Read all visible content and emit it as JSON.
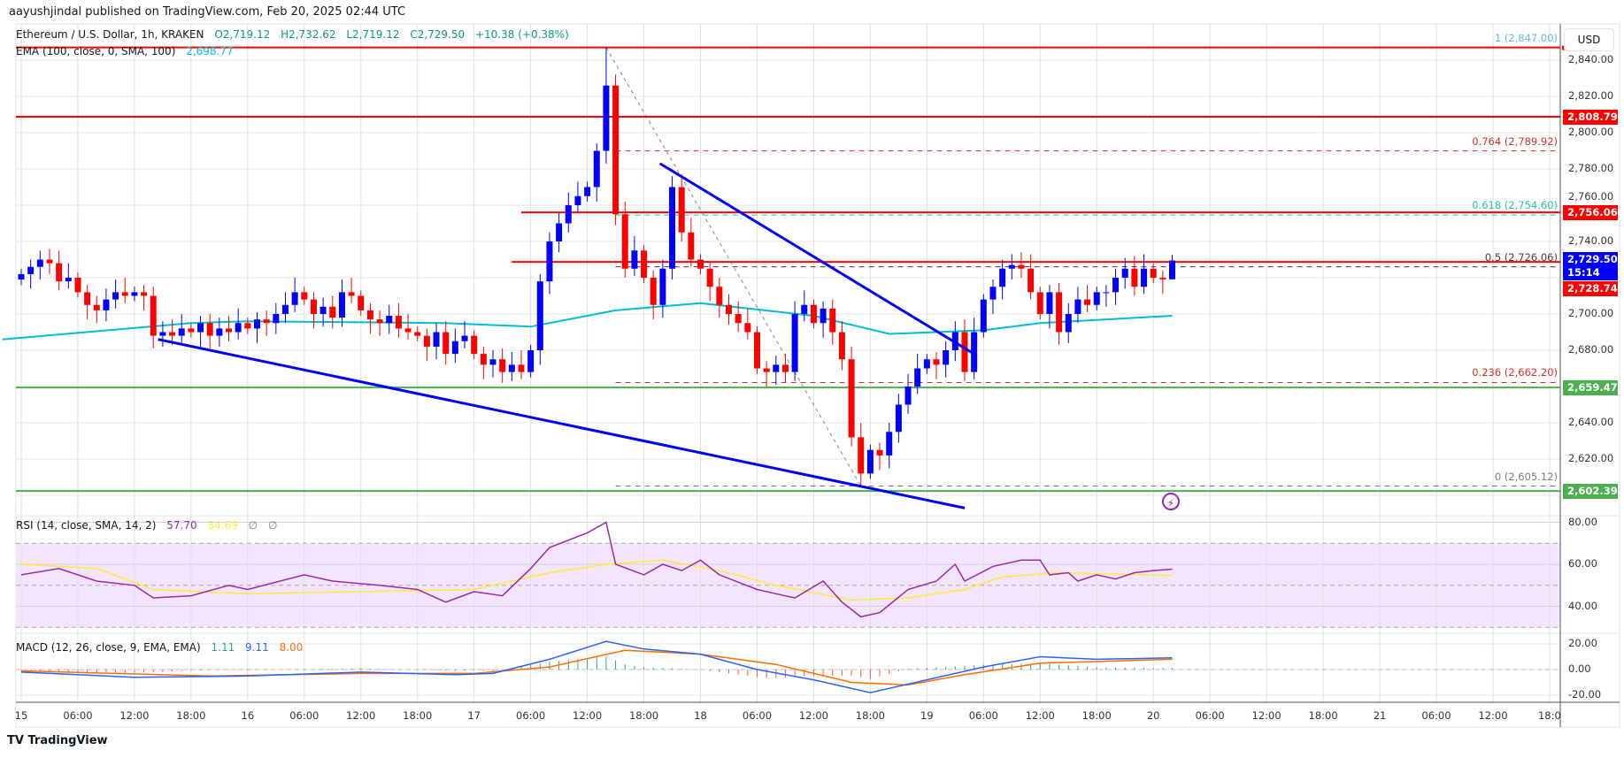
{
  "publisher": "aayushjindal published on TradingView.com, Feb 20, 2025 02:44 UTC",
  "symbol": {
    "title": "Ethereum / U.S. Dollar, 1h, KRAKEN",
    "open": "O2,719.12",
    "high": "H2,732.62",
    "low": "L2,719.12",
    "close": "C2,729.50",
    "change": "+10.38 (+0.38%)"
  },
  "ema": {
    "label": "EMA (100, close, 0, SMA, 100)",
    "value": "2,698.77",
    "color": "#00bcd4"
  },
  "rsi": {
    "label": "RSI (14, close, SMA, 14, 2)",
    "value": "57.70",
    "sma_value": "54.69",
    "extra1": "∅",
    "extra2": "∅",
    "color": "#9c27b0",
    "sma_color": "#ffeb3b"
  },
  "macd": {
    "label": "MACD (12, 26, close, 9, EMA, EMA)",
    "hist_value": "1.11",
    "macd_value": "9.11",
    "signal_value": "8.00",
    "macd_color": "#2962ff",
    "signal_color": "#ff6d00"
  },
  "currency_button": "USD",
  "countdown": "15:14",
  "branding": "TradingView",
  "colors": {
    "up": "#0000ff",
    "down": "#ff0000",
    "resistance": "#ff0000",
    "support": "#4caf50",
    "trendline": "#0000ff"
  },
  "price_axis_ticks": [
    "2,840.00",
    "2,820.00",
    "2,800.00",
    "2,780.00",
    "2,760.00",
    "2,740.00",
    "2,700.00",
    "2,680.00",
    "2,640.00",
    "2,620.00"
  ],
  "rsi_axis_ticks": [
    "80.00",
    "60.00",
    "40.00"
  ],
  "macd_axis_ticks": [
    "20.00",
    "0.00",
    "-20.00"
  ],
  "time_axis_ticks": [
    "15",
    "06:00",
    "12:00",
    "18:00",
    "16",
    "06:00",
    "12:00",
    "18:00",
    "17",
    "06:00",
    "12:00",
    "18:00",
    "18",
    "06:00",
    "12:00",
    "18:00",
    "19",
    "06:00",
    "12:00",
    "18:00",
    "20",
    "06:00",
    "12:00",
    "18:00",
    "21",
    "06:00",
    "12:00",
    "18:0"
  ],
  "price_tags": [
    {
      "value": 2808.79,
      "label": "2,808.79",
      "color": "#ff0000"
    },
    {
      "value": 2756.06,
      "label": "2,756.06",
      "color": "#ff0000"
    },
    {
      "value": 2729.5,
      "label": "2,729.50",
      "color": "#0000ff"
    },
    {
      "value": 2728.74,
      "label": "2,728.74",
      "color": "#ff0000"
    },
    {
      "value": 2659.47,
      "label": "2,659.47",
      "color": "#4caf50"
    },
    {
      "value": 2602.39,
      "label": "2,602.39",
      "color": "#4caf50"
    }
  ],
  "fib_levels": [
    {
      "ratio": 1,
      "price": 2847.0,
      "label": "1 (2,847.00)",
      "color": "#64b5f6"
    },
    {
      "ratio": 0.764,
      "price": 2789.92,
      "label": "0.764 (2,789.92)",
      "color": "#d32f2f"
    },
    {
      "ratio": 0.618,
      "price": 2754.6,
      "label": "0.618 (2,754.60)",
      "color": "#26c6a0"
    },
    {
      "ratio": 0.5,
      "price": 2726.06,
      "label": "0.5 (2,726.06)",
      "color": "#5d2e46"
    },
    {
      "ratio": 0.236,
      "price": 2662.2,
      "label": "0.236 (2,662.20)",
      "color": "#d32f2f"
    },
    {
      "ratio": 0,
      "price": 2605.12,
      "label": "0 (2,605.12)",
      "color": "#787b86"
    }
  ],
  "chart_data": {
    "type": "candlestick",
    "interval": "1h",
    "x_start": "2025-02-15 00:00",
    "y_range": [
      2595,
      2855
    ],
    "grid": true,
    "close": [
      2722,
      2726,
      2730,
      2728,
      2718,
      2720,
      2712,
      2705,
      2702,
      2708,
      2712,
      2710,
      2712,
      2710,
      2688,
      2690,
      2688,
      2692,
      2690,
      2695,
      2688,
      2692,
      2690,
      2695,
      2692,
      2697,
      2695,
      2700,
      2705,
      2712,
      2708,
      2700,
      2704,
      2698,
      2712,
      2710,
      2702,
      2697,
      2695,
      2699,
      2692,
      2690,
      2688,
      2682,
      2690,
      2678,
      2685,
      2688,
      2678,
      2672,
      2675,
      2668,
      2672,
      2668,
      2680,
      2718,
      2740,
      2750,
      2760,
      2765,
      2770,
      2790,
      2826,
      2755,
      2725,
      2735,
      2720,
      2705,
      2725,
      2770,
      2745,
      2730,
      2725,
      2715,
      2705,
      2700,
      2695,
      2690,
      2670,
      2668,
      2672,
      2668,
      2700,
      2705,
      2695,
      2703,
      2690,
      2675,
      2632,
      2612,
      2625,
      2622,
      2635,
      2650,
      2660,
      2670,
      2675,
      2672,
      2680,
      2690,
      2668,
      2690,
      2708,
      2715,
      2725,
      2727,
      2725,
      2712,
      2700,
      2712,
      2690,
      2700,
      2708,
      2705,
      2712,
      2712,
      2720,
      2725,
      2715,
      2725,
      2720,
      2719.12,
      2729.5
    ],
    "last_candle": {
      "open": 2719.12,
      "high": 2732.62,
      "low": 2719.12,
      "close": 2729.5
    },
    "swing_high": {
      "hour": 62,
      "price": 2847.0
    },
    "swing_low": {
      "hour": 89,
      "price": 2605.12
    },
    "horizontal_lines": [
      {
        "price": 2847.0,
        "color": "#ff0000",
        "from_hour": -2
      },
      {
        "price": 2808.79,
        "color": "#ff0000",
        "from_hour": -2
      },
      {
        "price": 2756.06,
        "color": "#ff0000",
        "from_hour": 53
      },
      {
        "price": 2728.74,
        "color": "#ff0000",
        "from_hour": 52
      },
      {
        "price": 2659.47,
        "color": "#4caf50",
        "from_hour": -2
      },
      {
        "price": 2602.39,
        "color": "#4caf50",
        "from_hour": -2
      }
    ],
    "trendlines": [
      {
        "from": [
          14.5,
          2686
        ],
        "to": [
          100,
          2593
        ]
      },
      {
        "from": [
          67.7,
          2783
        ],
        "to": [
          101,
          2678
        ]
      }
    ],
    "ema_points": [
      [
        -2,
        2686
      ],
      [
        18,
        2695
      ],
      [
        24,
        2696
      ],
      [
        45,
        2695
      ],
      [
        54,
        2693
      ],
      [
        63,
        2702
      ],
      [
        72,
        2706
      ],
      [
        84,
        2699
      ],
      [
        92,
        2689
      ],
      [
        102,
        2691
      ],
      [
        108,
        2695
      ],
      [
        122,
        2699
      ]
    ],
    "rsi_points": [
      [
        0,
        55
      ],
      [
        4,
        58
      ],
      [
        8,
        52
      ],
      [
        12,
        50
      ],
      [
        14,
        44
      ],
      [
        18,
        45
      ],
      [
        22,
        50
      ],
      [
        24,
        48
      ],
      [
        30,
        55
      ],
      [
        33,
        52
      ],
      [
        38,
        50
      ],
      [
        42,
        48
      ],
      [
        45,
        42
      ],
      [
        48,
        47
      ],
      [
        51,
        45
      ],
      [
        54,
        58
      ],
      [
        56,
        68
      ],
      [
        60,
        75
      ],
      [
        62,
        80
      ],
      [
        63,
        60
      ],
      [
        66,
        55
      ],
      [
        68,
        60
      ],
      [
        70,
        57
      ],
      [
        72,
        62
      ],
      [
        74,
        55
      ],
      [
        78,
        48
      ],
      [
        80,
        46
      ],
      [
        82,
        44
      ],
      [
        85,
        52
      ],
      [
        87,
        42
      ],
      [
        89,
        35
      ],
      [
        91,
        37
      ],
      [
        94,
        48
      ],
      [
        97,
        52
      ],
      [
        99,
        60
      ],
      [
        100,
        52
      ],
      [
        103,
        59
      ],
      [
        106,
        62
      ],
      [
        108,
        62
      ],
      [
        109,
        55
      ],
      [
        111,
        56
      ],
      [
        112,
        52
      ],
      [
        114,
        55
      ],
      [
        116,
        53
      ],
      [
        118,
        56
      ],
      [
        120,
        57
      ],
      [
        122,
        57.7
      ]
    ],
    "rsi_sma_points": [
      [
        0,
        60
      ],
      [
        8,
        58
      ],
      [
        14,
        48
      ],
      [
        24,
        46
      ],
      [
        36,
        47
      ],
      [
        48,
        48
      ],
      [
        56,
        56
      ],
      [
        62,
        60
      ],
      [
        68,
        62
      ],
      [
        74,
        57
      ],
      [
        80,
        50
      ],
      [
        88,
        43
      ],
      [
        94,
        44
      ],
      [
        100,
        48
      ],
      [
        104,
        54
      ],
      [
        110,
        56
      ],
      [
        122,
        54.69
      ]
    ],
    "rsi_range": [
      25,
      85
    ],
    "rsi_bands": [
      30,
      50,
      70
    ],
    "macd_points": [
      [
        0,
        -2
      ],
      [
        12,
        -6
      ],
      [
        24,
        -5
      ],
      [
        36,
        -2
      ],
      [
        46,
        -4
      ],
      [
        50,
        -3
      ],
      [
        56,
        8
      ],
      [
        62,
        22
      ],
      [
        66,
        16
      ],
      [
        72,
        12
      ],
      [
        78,
        0
      ],
      [
        84,
        -8
      ],
      [
        90,
        -18
      ],
      [
        96,
        -8
      ],
      [
        102,
        2
      ],
      [
        108,
        10
      ],
      [
        114,
        8
      ],
      [
        122,
        9.11
      ]
    ],
    "signal_points": [
      [
        0,
        -1
      ],
      [
        20,
        -5
      ],
      [
        36,
        -3
      ],
      [
        48,
        -3
      ],
      [
        56,
        2
      ],
      [
        64,
        15
      ],
      [
        72,
        12
      ],
      [
        80,
        4
      ],
      [
        88,
        -10
      ],
      [
        94,
        -12
      ],
      [
        100,
        -4
      ],
      [
        108,
        5
      ],
      [
        122,
        8.0
      ]
    ]
  }
}
